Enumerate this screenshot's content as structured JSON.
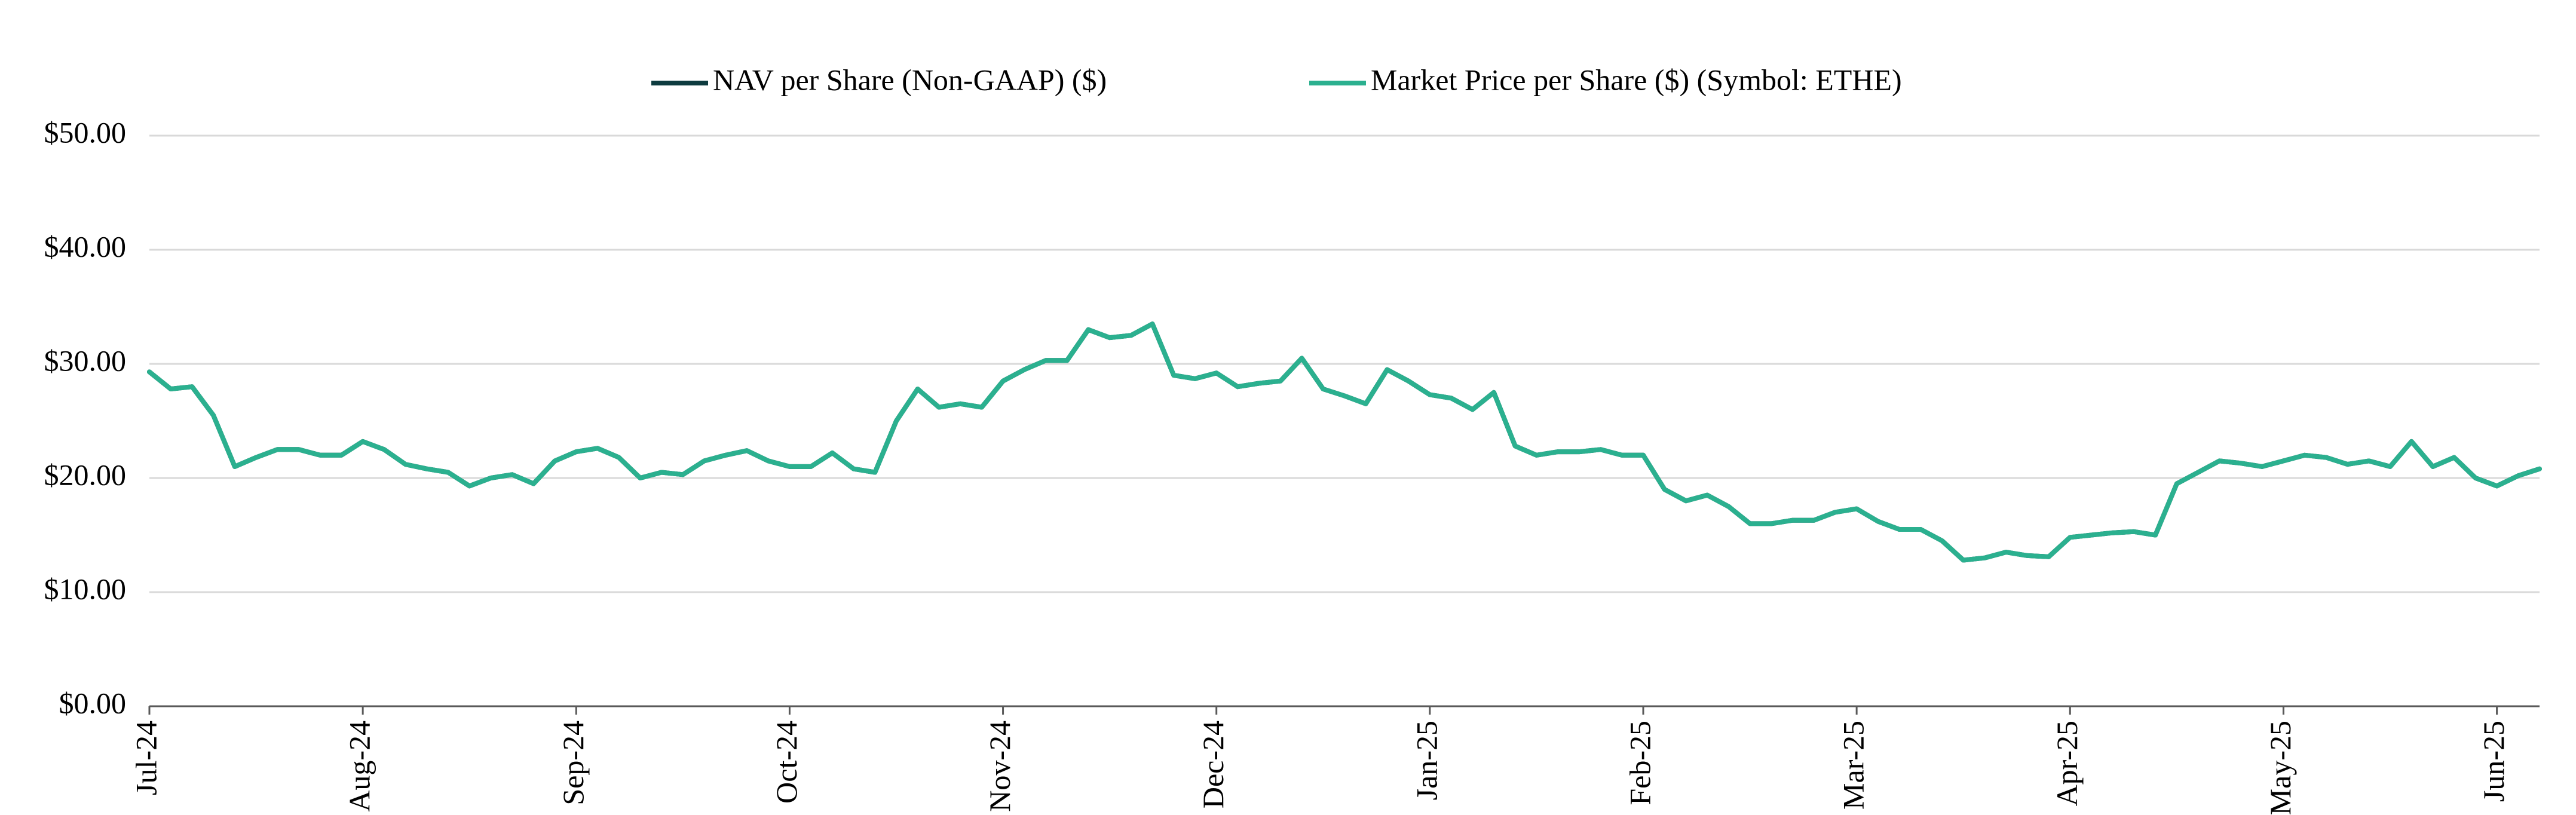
{
  "chart_data": {
    "type": "line",
    "categories": [
      "Jul-24",
      null,
      null,
      null,
      null,
      null,
      null,
      null,
      null,
      null,
      "Aug-24",
      null,
      null,
      null,
      null,
      null,
      null,
      null,
      null,
      null,
      "Sep-24",
      null,
      null,
      null,
      null,
      null,
      null,
      null,
      null,
      null,
      "Oct-24",
      null,
      null,
      null,
      null,
      null,
      null,
      null,
      null,
      null,
      "Nov-24",
      null,
      null,
      null,
      null,
      null,
      null,
      null,
      null,
      null,
      "Dec-24",
      null,
      null,
      null,
      null,
      null,
      null,
      null,
      null,
      null,
      "Jan-25",
      null,
      null,
      null,
      null,
      null,
      null,
      null,
      null,
      null,
      "Feb-25",
      null,
      null,
      null,
      null,
      null,
      null,
      null,
      null,
      null,
      "Mar-25",
      null,
      null,
      null,
      null,
      null,
      null,
      null,
      null,
      null,
      "Apr-25",
      null,
      null,
      null,
      null,
      null,
      null,
      null,
      null,
      null,
      "May-25",
      null,
      null,
      null,
      null,
      null,
      null,
      null,
      null,
      null,
      "Jun-25",
      null,
      null
    ],
    "series": [
      {
        "name": "NAV per Share (Non-GAAP) ($)",
        "color": "#0d3b3f",
        "values": [
          29.3,
          27.8,
          28.0,
          25.5,
          21.0,
          21.8,
          22.5,
          22.5,
          22.0,
          22.0,
          23.2,
          22.5,
          21.2,
          20.8,
          20.5,
          19.3,
          20.0,
          20.3,
          19.5,
          21.5,
          22.3,
          22.6,
          21.8,
          20.0,
          20.5,
          20.3,
          21.5,
          22.0,
          22.4,
          21.5,
          21.0,
          21.0,
          22.2,
          20.8,
          20.5,
          25.0,
          27.8,
          26.2,
          26.5,
          26.2,
          28.5,
          29.5,
          30.3,
          30.3,
          33.0,
          32.3,
          32.5,
          33.5,
          29.0,
          28.7,
          29.2,
          28.0,
          28.3,
          28.5,
          30.5,
          27.8,
          27.2,
          26.5,
          29.5,
          28.5,
          27.3,
          27.0,
          26.0,
          27.5,
          22.8,
          22.0,
          22.3,
          22.3,
          22.5,
          22.0,
          22.0,
          19.0,
          18.0,
          18.5,
          17.5,
          16.0,
          16.0,
          16.3,
          16.3,
          17.0,
          17.3,
          16.2,
          15.5,
          15.5,
          14.5,
          12.8,
          13.0,
          13.5,
          13.2,
          13.1,
          14.8,
          15.0,
          15.2,
          15.3,
          15.0,
          19.5,
          20.5,
          21.5,
          21.3,
          21.0,
          21.5,
          22.0,
          21.8,
          21.2,
          21.5,
          21.0,
          23.2,
          21.0,
          21.8,
          20.0,
          19.3,
          20.2,
          20.8
        ]
      },
      {
        "name": "Market Price per Share ($) (Symbol: ETHE)",
        "color": "#2bb08f",
        "values": [
          29.3,
          27.8,
          28.0,
          25.5,
          21.0,
          21.8,
          22.5,
          22.5,
          22.0,
          22.0,
          23.2,
          22.5,
          21.2,
          20.8,
          20.5,
          19.3,
          20.0,
          20.3,
          19.5,
          21.5,
          22.3,
          22.6,
          21.8,
          20.0,
          20.5,
          20.3,
          21.5,
          22.0,
          22.4,
          21.5,
          21.0,
          21.0,
          22.2,
          20.8,
          20.5,
          25.0,
          27.8,
          26.2,
          26.5,
          26.2,
          28.5,
          29.5,
          30.3,
          30.3,
          33.0,
          32.3,
          32.5,
          33.5,
          29.0,
          28.7,
          29.2,
          28.0,
          28.3,
          28.5,
          30.5,
          27.8,
          27.2,
          26.5,
          29.5,
          28.5,
          27.3,
          27.0,
          26.0,
          27.5,
          22.8,
          22.0,
          22.3,
          22.3,
          22.5,
          22.0,
          22.0,
          19.0,
          18.0,
          18.5,
          17.5,
          16.0,
          16.0,
          16.3,
          16.3,
          17.0,
          17.3,
          16.2,
          15.5,
          15.5,
          14.5,
          12.8,
          13.0,
          13.5,
          13.2,
          13.1,
          14.8,
          15.0,
          15.2,
          15.3,
          15.0,
          19.5,
          20.5,
          21.5,
          21.3,
          21.0,
          21.5,
          22.0,
          21.8,
          21.2,
          21.5,
          21.0,
          23.2,
          21.0,
          21.8,
          20.0,
          19.3,
          20.2,
          20.8
        ]
      }
    ],
    "ylim": [
      0,
      50
    ],
    "yticks": [
      {
        "value": 0,
        "label": "$0.00"
      },
      {
        "value": 10,
        "label": "$10.00"
      },
      {
        "value": 20,
        "label": "$20.00"
      },
      {
        "value": 30,
        "label": "$30.00"
      },
      {
        "value": 40,
        "label": "$40.00"
      },
      {
        "value": 50,
        "label": "$50.00"
      }
    ],
    "grid": true,
    "legend": "top"
  }
}
